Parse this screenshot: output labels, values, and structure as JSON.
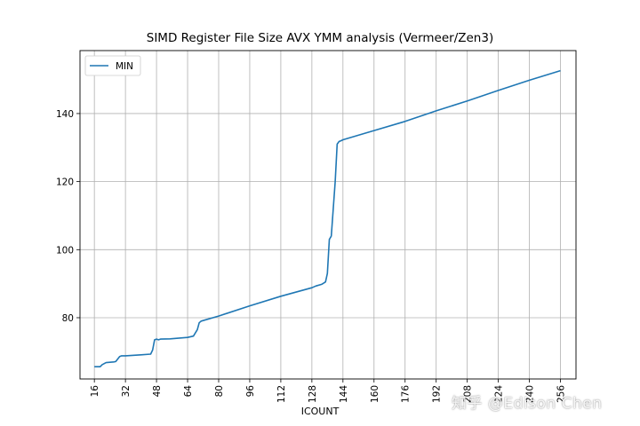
{
  "watermark": "知乎 @Edison Chen",
  "chart_data": {
    "type": "line",
    "title": "SIMD Register File Size AVX YMM analysis (Vermeer/Zen3)",
    "xlabel": "ICOUNT",
    "ylabel": "",
    "xlim": [
      8.6,
      264
    ],
    "ylim": [
      62,
      158.5
    ],
    "xticks": [
      16,
      32,
      48,
      64,
      80,
      96,
      112,
      128,
      144,
      160,
      176,
      192,
      208,
      224,
      240,
      256
    ],
    "yticks": [
      80,
      100,
      120,
      140
    ],
    "grid": true,
    "legend": "upper-left",
    "series": [
      {
        "name": "MIN",
        "color": "#1f77b4",
        "x": [
          16,
          19,
          20,
          22,
          26,
          27,
          29,
          30,
          32,
          40,
          45,
          46,
          47,
          48,
          49,
          50,
          55,
          64,
          67,
          69,
          70,
          71,
          80,
          96,
          112,
          128,
          130,
          133,
          135,
          136,
          137,
          138,
          139,
          140,
          141,
          142,
          143,
          144,
          160,
          176,
          192,
          208,
          224,
          240,
          256
        ],
        "y": [
          65.6,
          65.6,
          66.2,
          66.8,
          67,
          67.1,
          68.6,
          68.8,
          68.8,
          69.1,
          69.3,
          70.5,
          73.5,
          73.7,
          73.5,
          73.7,
          73.8,
          74.2,
          74.6,
          76.5,
          78.5,
          79,
          80.5,
          83.5,
          86.3,
          88.8,
          89.3,
          89.8,
          90.5,
          93,
          103,
          104,
          112,
          120,
          131,
          131.8,
          132,
          132.3,
          135,
          137.7,
          140.8,
          143.7,
          146.8,
          149.8,
          152.6
        ]
      }
    ]
  }
}
